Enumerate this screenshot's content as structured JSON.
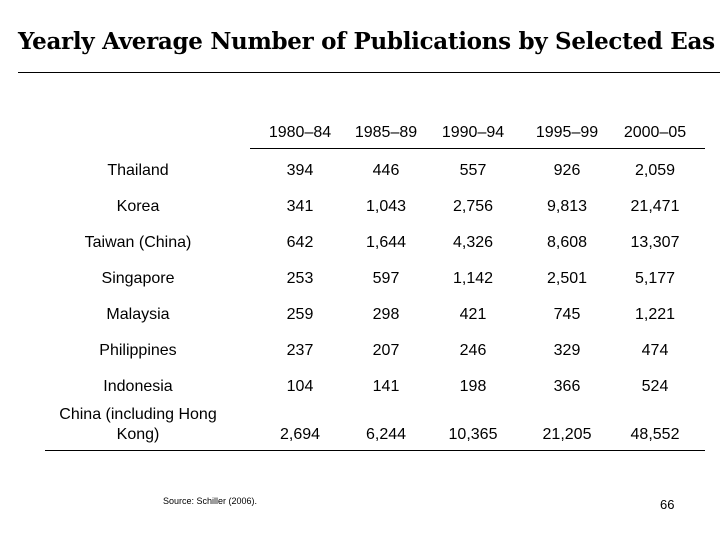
{
  "title": "Yearly Average Number of Publications by Selected Eas",
  "table": {
    "columns": [
      "1980–84",
      "1985–89",
      "1990–94",
      "1995–99",
      "2000–05"
    ],
    "rows": [
      [
        "Thailand",
        "394",
        "446",
        "557",
        "926",
        "2,059"
      ],
      [
        "Korea",
        "341",
        "1,043",
        "2,756",
        "9,813",
        "21,471"
      ],
      [
        "Taiwan (China)",
        "642",
        "1,644",
        "4,326",
        "8,608",
        "13,307"
      ],
      [
        "Singapore",
        "253",
        "597",
        "1,142",
        "2,501",
        "5,177"
      ],
      [
        "Malaysia",
        "259",
        "298",
        "421",
        "745",
        "1,221"
      ],
      [
        "Philippines",
        "237",
        "207",
        "246",
        "329",
        "474"
      ],
      [
        "Indonesia",
        "104",
        "141",
        "198",
        "366",
        "524"
      ],
      [
        "China (including Hong Kong)",
        "2,694",
        "6,244",
        "10,365",
        "21,205",
        "48,552"
      ]
    ]
  },
  "source": "Source: Schiller (2006).",
  "page_number": "66"
}
